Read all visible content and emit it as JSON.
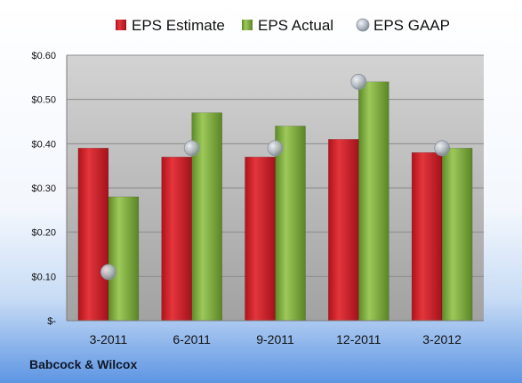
{
  "company": "Babcock & Wilcox",
  "chart_data": {
    "type": "bar",
    "title": "",
    "xlabel": "",
    "ylabel": "",
    "categories": [
      "3-2011",
      "6-2011",
      "9-2011",
      "12-2011",
      "3-2012"
    ],
    "series": [
      {
        "name": "EPS Estimate",
        "kind": "bar",
        "color": "#c8202a",
        "values": [
          0.39,
          0.37,
          0.37,
          0.41,
          0.38
        ]
      },
      {
        "name": "EPS Actual",
        "kind": "bar",
        "color": "#79a83a",
        "values": [
          0.28,
          0.47,
          0.44,
          0.54,
          0.39
        ]
      },
      {
        "name": "EPS GAAP",
        "kind": "marker",
        "color": "#a9b2bc",
        "values": [
          0.11,
          0.39,
          0.39,
          0.54,
          0.39
        ]
      }
    ],
    "ylim": [
      0,
      0.6
    ],
    "yticks": [
      {
        "value": 0.6,
        "label": "$0.60"
      },
      {
        "value": 0.5,
        "label": "$0.50"
      },
      {
        "value": 0.4,
        "label": "$0.40"
      },
      {
        "value": 0.3,
        "label": "$0.30"
      },
      {
        "value": 0.2,
        "label": "$0.20"
      },
      {
        "value": 0.1,
        "label": "$0.10"
      },
      {
        "value": 0,
        "label": "$-"
      }
    ],
    "grid": true,
    "legend_position": "top"
  }
}
